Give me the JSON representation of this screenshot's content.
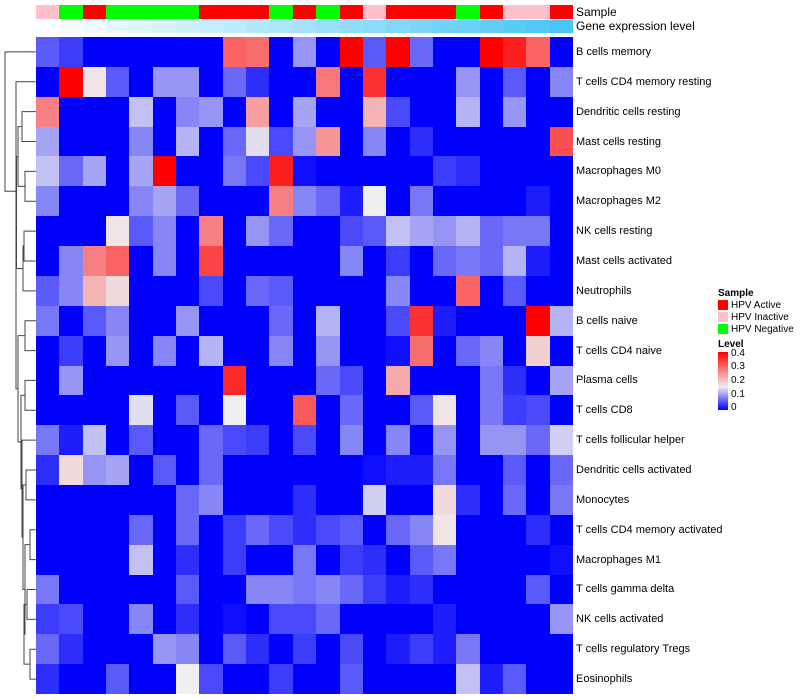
{
  "annotations": {
    "sample_label": "Sample",
    "gene_label": "Gene expression level",
    "sample_groups": [
      "HPV Inactive",
      "HPV Negative",
      "HPV Active",
      "HPV Negative",
      "HPV Negative",
      "HPV Negative",
      "HPV Negative",
      "HPV Active",
      "HPV Active",
      "HPV Active",
      "HPV Negative",
      "HPV Active",
      "HPV Negative",
      "HPV Active",
      "HPV Inactive",
      "HPV Active",
      "HPV Active",
      "HPV Active",
      "HPV Negative",
      "HPV Active",
      "HPV Inactive",
      "HPV Inactive",
      "HPV Active"
    ],
    "gene_expression_level": [
      0,
      0.045,
      0.09,
      0.135,
      0.18,
      0.225,
      0.27,
      0.315,
      0.36,
      0.405,
      0.45,
      0.5,
      0.545,
      0.59,
      0.635,
      0.68,
      0.725,
      0.77,
      0.815,
      0.86,
      0.905,
      0.95,
      1.0
    ]
  },
  "legend": {
    "sample_title": "Sample",
    "sample_items": [
      {
        "label": "HPV Active",
        "color": "#ff0000"
      },
      {
        "label": "HPV Inactive",
        "color": "#ffc0cb"
      },
      {
        "label": "HPV Negative",
        "color": "#00ff00"
      }
    ],
    "level_title": "Level",
    "level_ticks": [
      "0.4",
      "0.3",
      "0.2",
      "0.1",
      "0"
    ]
  },
  "chart_data": {
    "type": "heatmap",
    "title": "",
    "xlabel": "",
    "ylabel": "",
    "value_range": [
      0,
      0.4
    ],
    "color_scale": {
      "low": "#0000ff",
      "mid": "#f0eef0",
      "high": "#ff0000"
    },
    "rows": [
      {
        "label": "B cells memory",
        "values": [
          0.06,
          0.04,
          0,
          0,
          0,
          0,
          0,
          0,
          0.3,
          0.29,
          0,
          0.1,
          0,
          0.4,
          0.06,
          0.4,
          0.07,
          0,
          0,
          0.4,
          0.37,
          0.3,
          0
        ]
      },
      {
        "label": "T cells CD4 memory resting",
        "values": [
          0,
          0.4,
          0.17,
          0.06,
          0,
          0.1,
          0.1,
          0,
          0.07,
          0.03,
          0,
          0,
          0.28,
          0,
          0.35,
          0,
          0,
          0,
          0.1,
          0,
          0.06,
          0,
          0.09
        ]
      },
      {
        "label": "Dendritic cells resting",
        "values": [
          0.27,
          0,
          0,
          0,
          0.13,
          0,
          0.09,
          0.1,
          0,
          0.24,
          0,
          0.11,
          0,
          0,
          0.22,
          0.05,
          0,
          0,
          0.12,
          0,
          0.1,
          0,
          0
        ]
      },
      {
        "label": "Mast cells resting",
        "values": [
          0.11,
          0,
          0,
          0,
          0.09,
          0,
          0.12,
          0,
          0.07,
          0.15,
          0.05,
          0.1,
          0.25,
          0,
          0.09,
          0,
          0.03,
          0,
          0,
          0,
          0,
          0,
          0.32
        ]
      },
      {
        "label": "Macrophages M0",
        "values": [
          0.13,
          0.07,
          0.11,
          0,
          0.11,
          0.4,
          0,
          0,
          0.08,
          0.05,
          0.37,
          0.01,
          0,
          0,
          0,
          0,
          0,
          0.04,
          0.03,
          0,
          0,
          0,
          0
        ]
      },
      {
        "label": "Macrophages M2",
        "values": [
          0.09,
          0,
          0,
          0,
          0.09,
          0.11,
          0.07,
          0,
          0,
          0,
          0.27,
          0.09,
          0.07,
          0.02,
          0.16,
          0,
          0.08,
          0,
          0,
          0,
          0,
          0.02,
          0
        ]
      },
      {
        "label": "NK cells resting",
        "values": [
          0,
          0,
          0,
          0.17,
          0.06,
          0.09,
          0,
          0.27,
          0,
          0.1,
          0.07,
          0,
          0,
          0.05,
          0.06,
          0.13,
          0.11,
          0.1,
          0.12,
          0.07,
          0.08,
          0.08,
          0
        ]
      },
      {
        "label": "Mast cells activated",
        "values": [
          0,
          0.09,
          0.27,
          0.3,
          0,
          0.09,
          0,
          0.33,
          0,
          0,
          0,
          0,
          0,
          0.09,
          0,
          0.04,
          0,
          0.07,
          0.08,
          0.07,
          0.12,
          0.02,
          0
        ]
      },
      {
        "label": "Neutrophils",
        "values": [
          0.06,
          0.09,
          0.22,
          0.18,
          0,
          0,
          0,
          0.05,
          0,
          0.07,
          0.06,
          0,
          0,
          0,
          0,
          0.09,
          0,
          0,
          0.3,
          0,
          0.06,
          0,
          0
        ]
      },
      {
        "label": "B cells naive",
        "values": [
          0.08,
          0,
          0.06,
          0.09,
          0,
          0,
          0.1,
          0,
          0,
          0,
          0.07,
          0,
          0.12,
          0,
          0,
          0.05,
          0.35,
          0.02,
          0,
          0,
          0,
          0.4,
          0.12
        ]
      },
      {
        "label": "T cells CD4 naive",
        "values": [
          0,
          0.04,
          0,
          0.1,
          0,
          0.09,
          0,
          0.12,
          0,
          0,
          0.09,
          0,
          0.1,
          0,
          0,
          0.01,
          0.29,
          0,
          0.07,
          0.09,
          0,
          0.19,
          0
        ]
      },
      {
        "label": "Plasma cells",
        "values": [
          0,
          0.1,
          0,
          0,
          0,
          0,
          0,
          0,
          0.36,
          0,
          0,
          0,
          0.07,
          0.05,
          0,
          0.23,
          0,
          0,
          0,
          0.08,
          0.03,
          0,
          0.11
        ]
      },
      {
        "label": "T cells CD8",
        "values": [
          0,
          0,
          0,
          0,
          0.15,
          0,
          0.06,
          0,
          0.16,
          0,
          0,
          0.31,
          0,
          0.07,
          0,
          0,
          0.06,
          0.17,
          0,
          0.08,
          0.04,
          0.05,
          0
        ]
      },
      {
        "label": "T cells follicular helper",
        "values": [
          0.08,
          0.02,
          0.13,
          0,
          0.06,
          0,
          0,
          0.07,
          0.05,
          0.04,
          0,
          0.05,
          0,
          0.09,
          0,
          0.09,
          0,
          0.1,
          0,
          0.1,
          0.1,
          0.07,
          0.14
        ]
      },
      {
        "label": "Dendritic cells activated",
        "values": [
          0.03,
          0.18,
          0.1,
          0.11,
          0,
          0.06,
          0,
          0.07,
          0,
          0,
          0,
          0,
          0,
          0,
          0.01,
          0.02,
          0.02,
          0.08,
          0,
          0,
          0.06,
          0,
          0.07
        ]
      },
      {
        "label": "Monocytes",
        "values": [
          0,
          0,
          0,
          0,
          0,
          0,
          0.07,
          0.09,
          0,
          0,
          0,
          0.03,
          0,
          0,
          0.14,
          0,
          0,
          0.18,
          0.03,
          0,
          0.07,
          0,
          0.08
        ]
      },
      {
        "label": "T cells CD4 memory activated",
        "values": [
          0,
          0,
          0,
          0,
          0.07,
          0,
          0.07,
          0,
          0.04,
          0.07,
          0.05,
          0.03,
          0.05,
          0.06,
          0,
          0.07,
          0.09,
          0.17,
          0,
          0,
          0,
          0.03,
          0
        ]
      },
      {
        "label": "Macrophages M1",
        "values": [
          0,
          0,
          0,
          0,
          0.13,
          0,
          0.03,
          0,
          0.04,
          0,
          0,
          0.08,
          0,
          0.04,
          0.03,
          0,
          0.06,
          0.08,
          0,
          0,
          0,
          0,
          0.01
        ]
      },
      {
        "label": "T cells gamma delta",
        "values": [
          0.08,
          0,
          0,
          0,
          0,
          0,
          0.06,
          0,
          0,
          0.09,
          0.09,
          0.08,
          0.09,
          0.07,
          0.04,
          0.02,
          0.03,
          0,
          0,
          0,
          0,
          0.06,
          0
        ]
      },
      {
        "label": "NK cells activated",
        "values": [
          0.04,
          0.05,
          0,
          0,
          0.09,
          0,
          0.03,
          0,
          0.01,
          0,
          0.05,
          0.05,
          0.07,
          0,
          0,
          0,
          0,
          0.02,
          0,
          0,
          0,
          0,
          0.1
        ]
      },
      {
        "label": "T cells regulatory  Tregs",
        "values": [
          0.07,
          0.03,
          0,
          0,
          0,
          0.1,
          0.09,
          0,
          0.06,
          0.03,
          0,
          0.04,
          0,
          0.05,
          0,
          0.02,
          0.04,
          0.02,
          0.08,
          0,
          0,
          0,
          0
        ]
      },
      {
        "label": "Eosinophils",
        "values": [
          0.03,
          0,
          0,
          0.06,
          0,
          0,
          0.16,
          0.05,
          0,
          0,
          0.04,
          0,
          0,
          0.06,
          0,
          0,
          0,
          0,
          0.13,
          0.02,
          0.06,
          0,
          0
        ]
      }
    ]
  }
}
